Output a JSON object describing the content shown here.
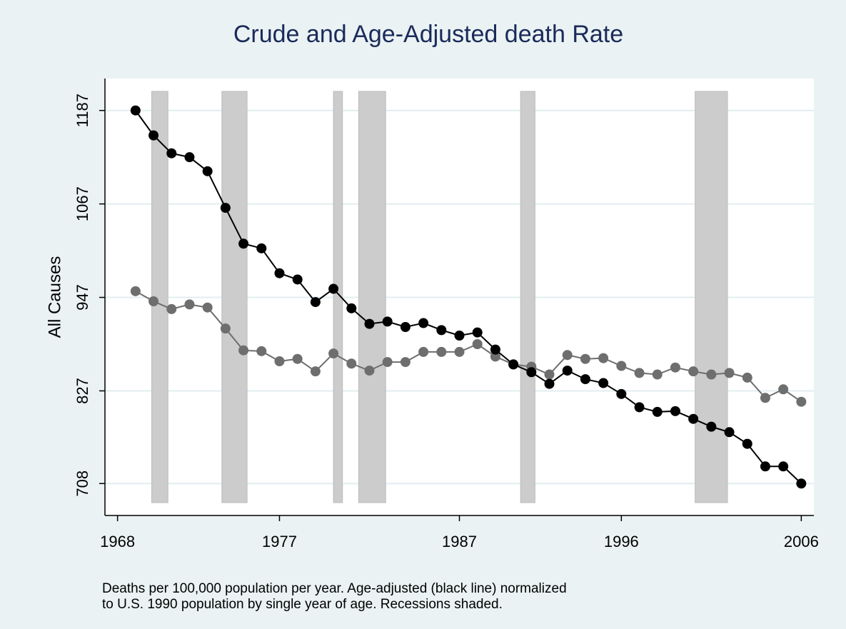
{
  "chart_data": {
    "type": "line",
    "title": "Crude and Age-Adjusted death Rate",
    "y_label": "All Causes",
    "note": [
      "Deaths per 100,000 population per year.  Age-adjusted (black line) normalized",
      "to U.S. 1990 population by single year of age.  Recessions shaded."
    ],
    "x": [
      1969,
      1970,
      1971,
      1972,
      1973,
      1974,
      1975,
      1976,
      1977,
      1978,
      1979,
      1980,
      1981,
      1982,
      1983,
      1984,
      1985,
      1986,
      1987,
      1988,
      1989,
      1990,
      1991,
      1992,
      1993,
      1994,
      1995,
      1996,
      1997,
      1998,
      1999,
      2000,
      2001,
      2002,
      2003,
      2004,
      2005,
      2006
    ],
    "series": [
      {
        "color": "#000000",
        "values": [
          1187,
          1155,
          1132,
          1127,
          1109,
          1062,
          1016,
          1010,
          978,
          970,
          941,
          958,
          933,
          913,
          916,
          909,
          914,
          905,
          898,
          902,
          880,
          861,
          851,
          836,
          853,
          842,
          837,
          823,
          806,
          800,
          801,
          791,
          781,
          774,
          759,
          730,
          730,
          708
        ]
      },
      {
        "color": "#6e6e6e",
        "values": [
          955,
          942,
          932,
          938,
          934,
          907,
          879,
          878,
          865,
          868,
          852,
          875,
          862,
          853,
          864,
          864,
          877,
          877,
          877,
          887,
          871,
          861,
          858,
          848,
          873,
          868,
          869,
          859,
          850,
          848,
          857,
          852,
          848,
          850,
          844,
          818,
          829,
          813
        ]
      }
    ],
    "recessions": [
      [
        1969.9,
        1970.8
      ],
      [
        1973.8,
        1975.2
      ],
      [
        1980.0,
        1980.5
      ],
      [
        1981.4,
        1982.9
      ],
      [
        1990.4,
        1991.2
      ],
      [
        2000.1,
        2001.9
      ]
    ],
    "recession_color": "#cccccc",
    "xlim": [
      1967.3,
      2006.7
    ],
    "xticks": [
      1968,
      1977,
      1987,
      1996,
      2006
    ],
    "ylim": [
      667,
      1228
    ],
    "yticks": [
      708,
      827,
      947,
      1067,
      1187
    ],
    "grid": true
  }
}
